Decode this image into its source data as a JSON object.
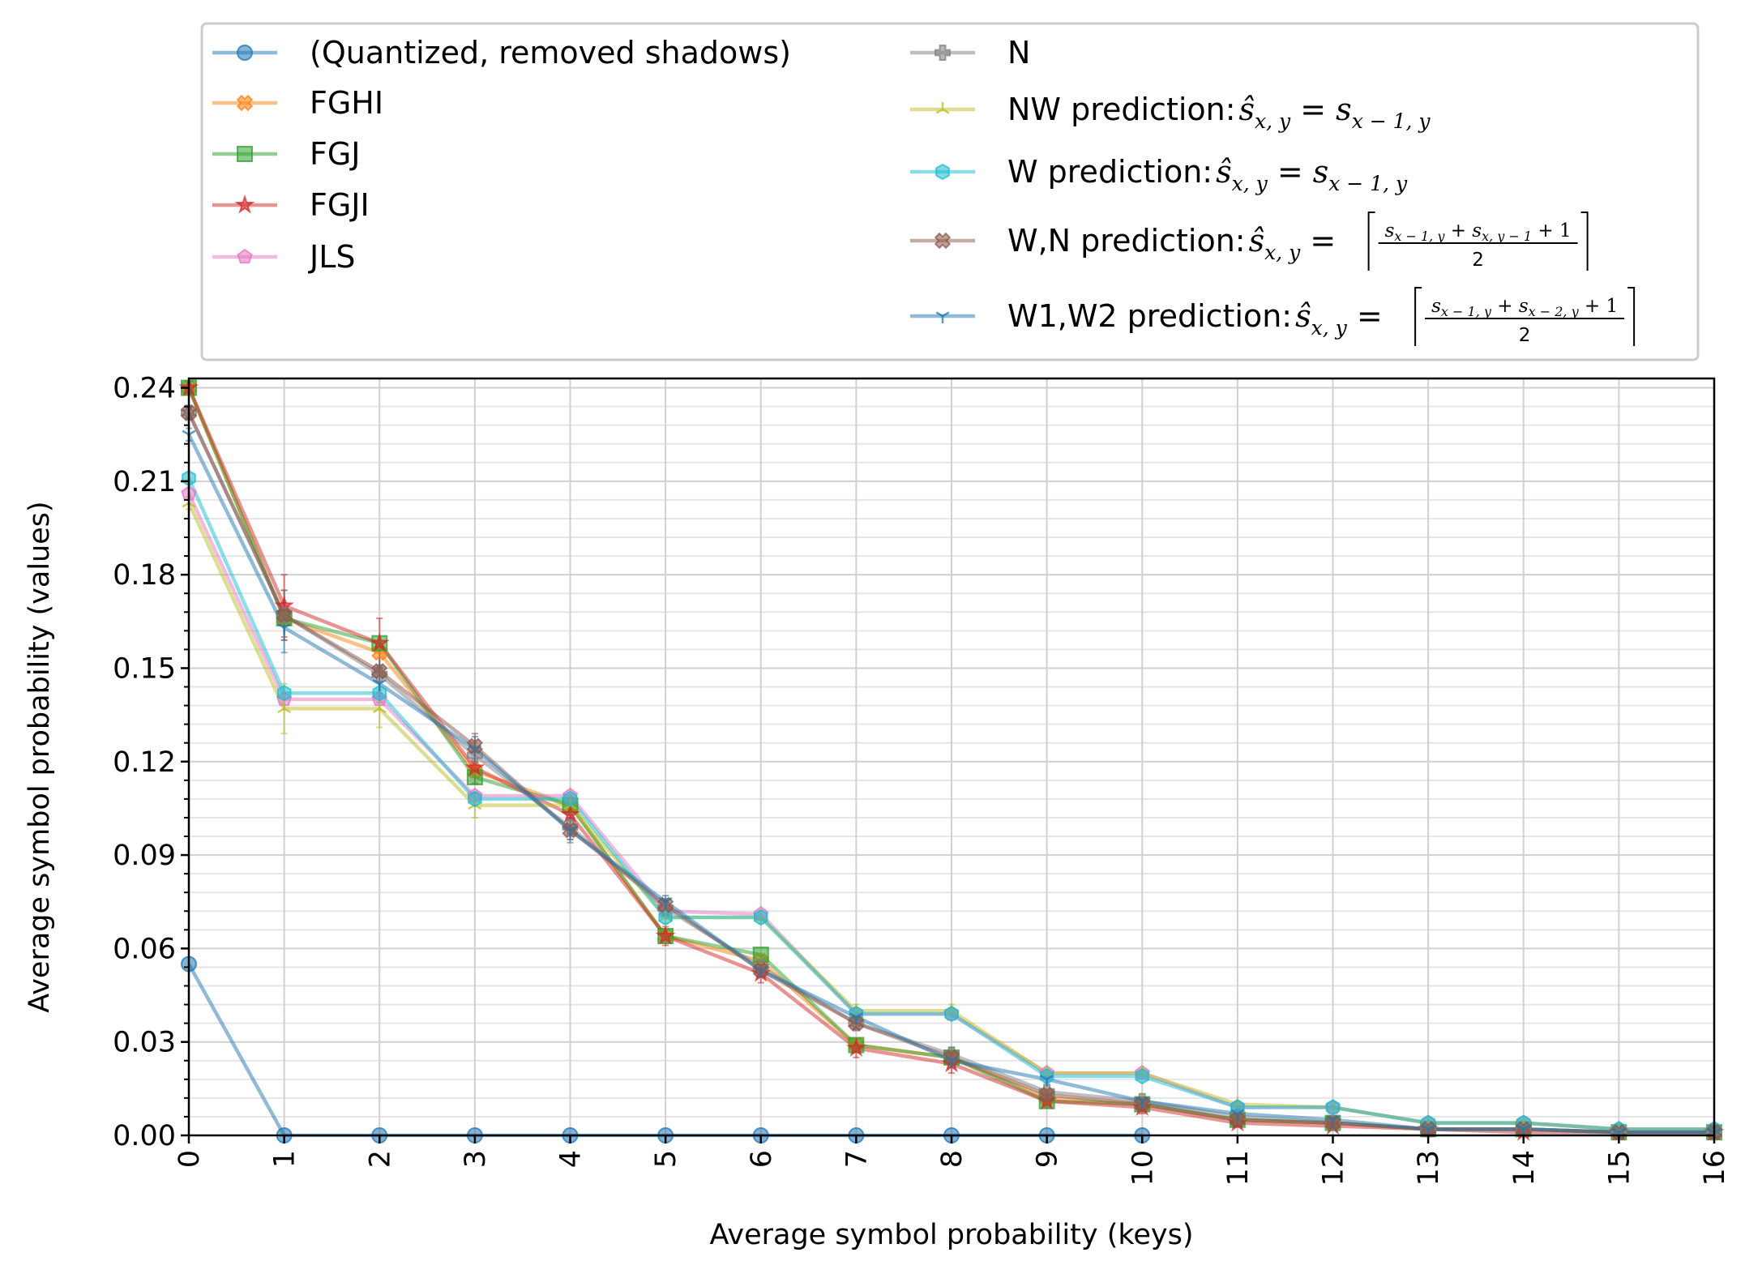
{
  "chart_data": {
    "type": "line",
    "title": "",
    "xlabel": "Average symbol probability (keys)",
    "ylabel": "Average symbol probability (values)",
    "xlim": [
      0,
      16
    ],
    "ylim": [
      0,
      0.243
    ],
    "xticks": [
      "0",
      "1",
      "2",
      "3",
      "4",
      "5",
      "6",
      "7",
      "8",
      "9",
      "10",
      "11",
      "12",
      "13",
      "14",
      "15",
      "16"
    ],
    "yticks": [
      "0.00",
      "0.03",
      "0.06",
      "0.09",
      "0.12",
      "0.15",
      "0.18",
      "0.21",
      "0.24"
    ],
    "grid": "major and minor",
    "legend_placement": "above plot, two columns",
    "x": [
      0,
      1,
      2,
      3,
      4,
      5,
      6,
      7,
      8,
      9,
      10,
      11,
      12,
      13,
      14,
      15,
      16
    ],
    "series": [
      {
        "name": "(Quantized, removed shadows)",
        "color": "#1f77b4",
        "marker": "circle",
        "values": [
          0.055,
          0,
          0,
          0,
          0,
          0,
          0,
          0,
          0,
          0,
          0,
          null,
          null,
          null,
          null,
          null,
          null
        ]
      },
      {
        "name": "FGHI",
        "color": "#ff7f0e",
        "marker": "x-filled",
        "values": [
          0.24,
          0.166,
          0.155,
          0.117,
          0.106,
          0.064,
          0.056,
          0.029,
          0.025,
          0.012,
          0.01,
          0.005,
          0.004,
          0.002,
          0.002,
          0.001,
          0.001
        ]
      },
      {
        "name": "FGJ",
        "color": "#2ca02c",
        "marker": "square",
        "values": [
          0.24,
          0.166,
          0.158,
          0.115,
          0.106,
          0.064,
          0.058,
          0.029,
          0.025,
          0.011,
          0.01,
          0.005,
          0.004,
          0.002,
          0.002,
          0.001,
          0.001
        ]
      },
      {
        "name": "FGJI",
        "color": "#d62728",
        "marker": "star",
        "values": [
          0.24,
          0.17,
          0.158,
          0.118,
          0.103,
          0.064,
          0.052,
          0.028,
          0.023,
          0.011,
          0.009,
          0.004,
          0.003,
          0.002,
          0.001,
          0.001,
          0.001
        ]
      },
      {
        "name": "JLS",
        "color": "#e377c2",
        "marker": "pentagon",
        "values": [
          0.206,
          0.14,
          0.14,
          0.109,
          0.109,
          0.072,
          0.071,
          0.039,
          0.039,
          0.02,
          0.02,
          0.009,
          0.009,
          0.004,
          0.004,
          0.002,
          0.002
        ]
      },
      {
        "name": "N",
        "color": "#7f7f7f",
        "marker": "plus",
        "values": [
          0.232,
          0.167,
          0.148,
          0.122,
          0.099,
          0.073,
          0.054,
          0.036,
          0.026,
          0.014,
          0.011,
          0.006,
          0.004,
          0.002,
          0.002,
          0.001,
          0.001
        ]
      },
      {
        "name": "NW prediction: ",
        "color": "#bcbd22",
        "marker": "tri",
        "values": [
          0.203,
          0.137,
          0.137,
          0.106,
          0.106,
          0.07,
          0.07,
          0.04,
          0.04,
          0.02,
          0.02,
          0.01,
          0.009,
          0.004,
          0.004,
          0.002,
          0.002
        ]
      },
      {
        "name": "W prediction: ",
        "color": "#17becf",
        "marker": "hexagon",
        "values": [
          0.211,
          0.142,
          0.142,
          0.108,
          0.108,
          0.07,
          0.07,
          0.039,
          0.039,
          0.019,
          0.019,
          0.009,
          0.009,
          0.004,
          0.004,
          0.002,
          0.002
        ]
      },
      {
        "name": "W,N prediction: ",
        "color": "#8c564b",
        "marker": "x-filled",
        "values": [
          0.232,
          0.167,
          0.149,
          0.125,
          0.098,
          0.074,
          0.053,
          0.036,
          0.025,
          0.013,
          0.01,
          0.005,
          0.004,
          0.002,
          0.002,
          0.001,
          0.001
        ]
      },
      {
        "name": "W1,W2 prediction: ",
        "color": "#1f77b4",
        "marker": "tri-down",
        "values": [
          0.225,
          0.163,
          0.145,
          0.124,
          0.098,
          0.075,
          0.053,
          0.038,
          0.024,
          0.018,
          0.011,
          0.007,
          0.005,
          0.002,
          0.002,
          0.001,
          0.001
        ]
      }
    ],
    "error_bars": {
      "FGJI": [
        0.002,
        0.01,
        0.008,
        0.005,
        0.004,
        0.003,
        0.003,
        0.003,
        0.003,
        0.002,
        0.002,
        0.001,
        0.001,
        0.001,
        0.001,
        0.001,
        0.001
      ],
      "N": [
        0.002,
        0.008,
        0.007,
        0.004,
        0.004,
        0.002,
        0.002,
        0.002,
        0.002,
        0.001,
        0.001,
        0.001,
        0.001,
        0.001,
        0.001,
        0.001,
        0.001
      ],
      "NW prediction: ": [
        0.002,
        0.008,
        0.006,
        0.004,
        0.003,
        0.002,
        0.002,
        0.002,
        0.002,
        0.001,
        0.001,
        0.001,
        0.001,
        0.001,
        0.001,
        0.001,
        0.001
      ],
      "W,N prediction: ": [
        0.002,
        0.008,
        0.007,
        0.004,
        0.003,
        0.002,
        0.002,
        0.002,
        0.002,
        0.001,
        0.001,
        0.001,
        0.001,
        0.001,
        0.001,
        0.001,
        0.001
      ],
      "W1,W2 prediction: ": [
        0.002,
        0.008,
        0.006,
        0.004,
        0.004,
        0.002,
        0.002,
        0.002,
        0.002,
        0.001,
        0.001,
        0.001,
        0.001,
        0.001,
        0.001,
        0.001,
        0.001
      ]
    }
  }
}
